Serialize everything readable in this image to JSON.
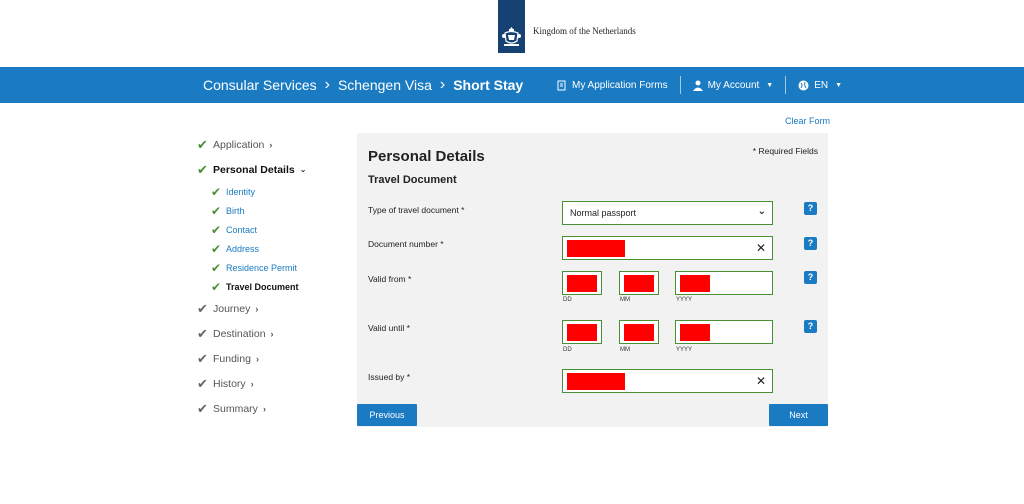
{
  "header": {
    "logo_text": "Kingdom of the Netherlands"
  },
  "nav": {
    "breadcrumbs": [
      "Consular Services",
      "Schengen Visa",
      "Short Stay"
    ],
    "separator": "›",
    "my_application_forms": "My Application Forms",
    "my_account": "My Account",
    "language": "EN"
  },
  "sidebar": {
    "steps": [
      {
        "label": "Application"
      },
      {
        "label": "Personal Details"
      },
      {
        "label": "Journey"
      },
      {
        "label": "Destination"
      },
      {
        "label": "Funding"
      },
      {
        "label": "History"
      },
      {
        "label": "Summary"
      }
    ],
    "substeps": [
      {
        "label": "Identity"
      },
      {
        "label": "Birth"
      },
      {
        "label": "Contact"
      },
      {
        "label": "Address"
      },
      {
        "label": "Residence Permit"
      },
      {
        "label": "Travel Document"
      }
    ]
  },
  "form": {
    "clear_form": "Clear Form",
    "title": "Personal Details",
    "required_note": "* Required Fields",
    "section": "Travel Document",
    "type_label": "Type of travel document *",
    "type_value": "Normal passport",
    "doc_number_label": "Document number *",
    "valid_from_label": "Valid from *",
    "valid_until_label": "Valid until *",
    "issued_by_label": "Issued by *",
    "dd": "DD",
    "mm": "MM",
    "yyyy": "YYYY",
    "help": "?",
    "clear_x": "✕"
  },
  "buttons": {
    "previous": "Previous",
    "next": "Next"
  },
  "colors": {
    "brand_blue": "#1a7bc3",
    "logo_navy": "#154273",
    "check_green": "#4b8f35",
    "redaction": "#ff0000"
  }
}
